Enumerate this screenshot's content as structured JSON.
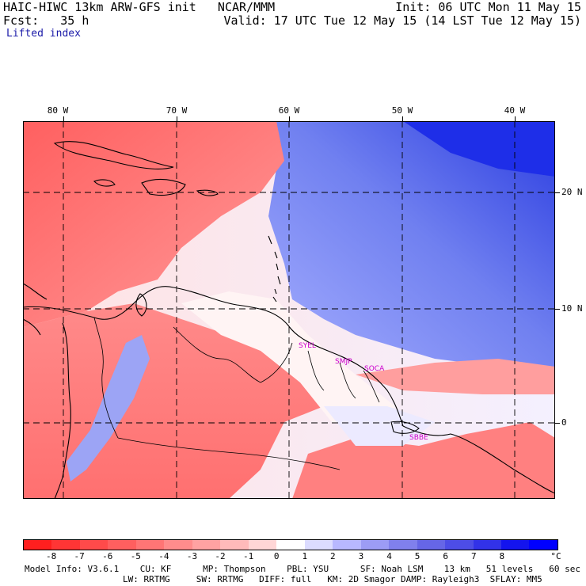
{
  "header": {
    "line1_left": "HAIC-HIWC 13km ARW-GFS init   NCAR/MMM",
    "line1_right": "Init: 06 UTC Mon 11 May 15",
    "line2_left": "Fcst:   35 h",
    "line2_right": "Valid: 17 UTC Tue 12 May 15 (14 LST Tue 12 May 15)",
    "field": "Lifted index"
  },
  "map": {
    "longitude_labels": [
      "80 W",
      "70 W",
      "60 W",
      "50 W",
      "40 W"
    ],
    "latitude_labels": [
      "20 N",
      "10 N",
      "0"
    ],
    "station_labels": [
      "SYEL",
      "SMJP",
      "SOCA",
      "SBBE"
    ],
    "colors": {
      "outline": "#000000",
      "grid": "#000000",
      "station": "#cc00cc",
      "negative_max": "#ff0000",
      "positive_max": "#0000ff"
    }
  },
  "colorbar": {
    "labels": [
      "-8",
      "-7",
      "-6",
      "-5",
      "-4",
      "-3",
      "-2",
      "-1",
      "0",
      "1",
      "2",
      "3",
      "4",
      "5",
      "6",
      "7",
      "8"
    ],
    "unit": "°C",
    "colors": [
      "#ff1f1f",
      "#ff3535",
      "#ff4a4a",
      "#ff5f5f",
      "#ff7575",
      "#ff8c8c",
      "#ffa2a2",
      "#ffbaba",
      "#ffd6d6",
      "#ffffff",
      "#dcdcff",
      "#b8b8ff",
      "#9c9cf5",
      "#8080ec",
      "#6666e6",
      "#4d4de6",
      "#3232e8",
      "#1414ee",
      "#0000ff"
    ]
  },
  "model_info": {
    "line1": "Model Info: V3.6.1    CU: KF      MP: Thompson    PBL: YSU      SF: Noah LSM    13 km   51 levels   60 sec",
    "line2": "LW: RRTMG     SW: RRTMG   DIFF: full   KM: 2D Smagor DAMP: Rayleigh3  SFLAY: MM5"
  }
}
